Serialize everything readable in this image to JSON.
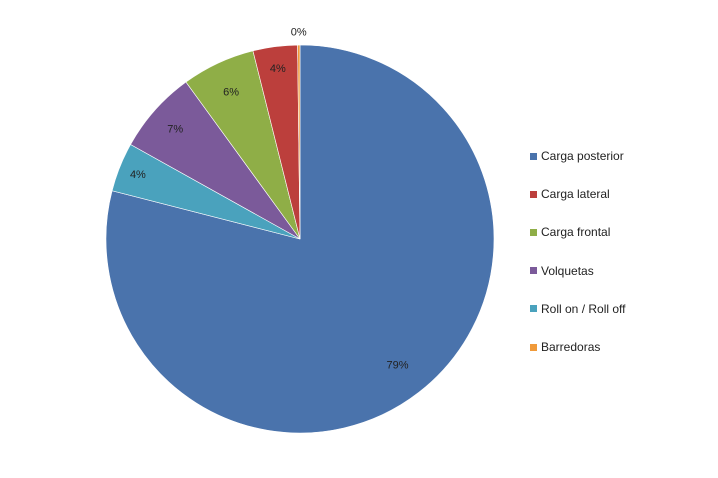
{
  "chart_data": {
    "type": "pie",
    "title": "",
    "legend_position": "right",
    "start_angle": "12-o-clock",
    "direction": "clockwise",
    "slices": [
      {
        "name": "Carga posterior",
        "value": 79.0,
        "label": "79%",
        "color": "#4a73ac"
      },
      {
        "name": "Roll on / Roll off",
        "value": 4.1,
        "label": "4%",
        "color": "#4aa2bd"
      },
      {
        "name": "Volquetas",
        "value": 6.9,
        "label": "7%",
        "color": "#7b5a9a"
      },
      {
        "name": "Carga frontal",
        "value": 6.1,
        "label": "6%",
        "color": "#8fae47"
      },
      {
        "name": "Carga lateral",
        "value": 3.7,
        "label": "4%",
        "color": "#bc3f3c"
      },
      {
        "name": "Barredoras",
        "value": 0.2,
        "label": "0%",
        "color": "#f09a3a"
      }
    ],
    "legend": [
      {
        "name": "Carga posterior",
        "color": "#4a73ac"
      },
      {
        "name": "Carga lateral",
        "color": "#bc3f3c"
      },
      {
        "name": "Carga frontal",
        "color": "#8fae47"
      },
      {
        "name": "Volquetas",
        "color": "#7b5a9a"
      },
      {
        "name": "Roll on / Roll off",
        "color": "#4aa2bd"
      },
      {
        "name": "Barredoras",
        "color": "#f09a3a"
      }
    ]
  }
}
